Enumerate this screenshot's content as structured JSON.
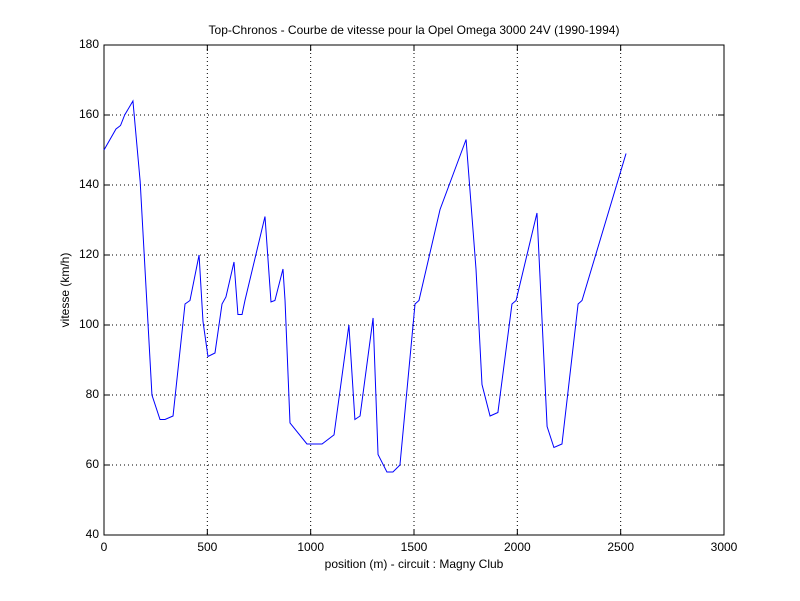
{
  "chart_data": {
    "type": "line",
    "title": "Top-Chronos - Courbe de vitesse pour la Opel Omega 3000 24V (1990-1994)",
    "xlabel": "position (m) - circuit : Magny Club",
    "ylabel": "vitesse (km/h)",
    "xlim": [
      0,
      3000
    ],
    "ylim": [
      40,
      180
    ],
    "xticks": [
      0,
      500,
      1000,
      1500,
      2000,
      2500,
      3000
    ],
    "yticks": [
      40,
      60,
      80,
      100,
      120,
      140,
      160,
      180
    ],
    "grid": true,
    "x": [
      0,
      58,
      80,
      100,
      140,
      175,
      232,
      271,
      295,
      334,
      392,
      416,
      460,
      479,
      503,
      537,
      571,
      590,
      629,
      648,
      668,
      682,
      779,
      808,
      827,
      866,
      876,
      900,
      982,
      1055,
      1113,
      1185,
      1214,
      1239,
      1302,
      1326,
      1369,
      1398,
      1432,
      1505,
      1524,
      1626,
      1752,
      1800,
      1829,
      1868,
      1906,
      1974,
      1994,
      2095,
      2144,
      2177,
      2216,
      2294,
      2313,
      2526
    ],
    "series": [
      {
        "color": "#0000ff",
        "values": [
          150,
          156,
          157,
          160,
          164,
          141,
          80,
          73,
          73,
          74,
          106,
          107,
          120,
          101,
          91,
          92,
          106,
          108,
          118,
          103,
          103,
          107,
          131,
          106.6,
          107,
          116,
          107,
          72,
          66,
          66,
          68.6,
          100,
          73,
          74,
          102,
          63,
          58,
          58,
          60,
          106,
          107,
          133,
          153,
          116,
          83,
          74,
          75,
          106,
          107,
          132,
          71,
          65,
          66,
          106,
          107,
          149
        ]
      }
    ]
  }
}
